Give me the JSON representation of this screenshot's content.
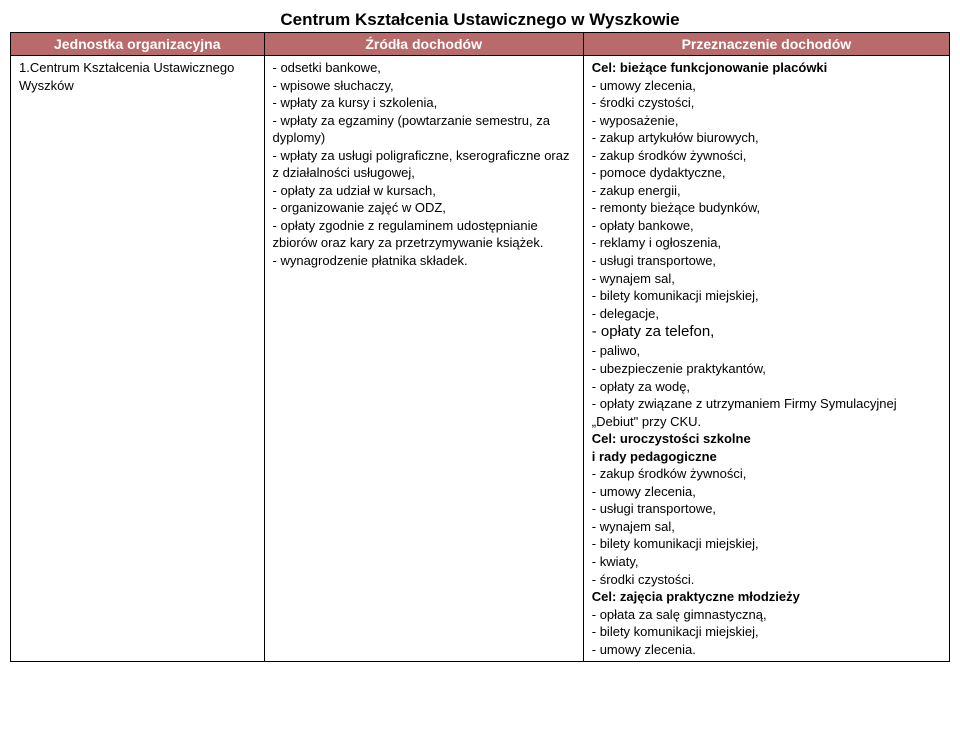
{
  "title": "Centrum Kształcenia Ustawicznego w Wyszkowie",
  "headers": {
    "col1": "Jednostka organizacyjna",
    "col2": "Źródła dochodów",
    "col3": "Przeznaczenie dochodów"
  },
  "row": {
    "unit": "1.Centrum Kształcenia Ustawicznego Wyszków",
    "sources": "- odsetki bankowe,\n- wpisowe słuchaczy,\n- wpłaty za kursy i szkolenia,\n- wpłaty za egzaminy (powtarzanie semestru, za dyplomy)\n- wpłaty za usługi poligraficzne, kserograficzne oraz z działalności usługowej,\n- opłaty za udział w kursach,\n- organizowanie zajęć w ODZ,\n- opłaty zgodnie z regulaminem udostępnianie zbiorów oraz kary za przetrzymywanie książek.\n- wynagrodzenie płatnika składek.",
    "purpose_goal1": "Cel: bieżące funkcjonowanie placówki",
    "purpose_block1": "- umowy zlecenia,\n- środki czystości,\n- wyposażenie,\n- zakup artykułów biurowych,\n- zakup środków żywności,\n- pomoce dydaktyczne,\n- zakup energii,\n- remonty bieżące budynków,\n- opłaty bankowe,\n- reklamy i ogłoszenia,\n- usługi transportowe,\n- wynajem sal,\n- bilety komunikacji miejskiej,\n- delegacje,",
    "purpose_telefon": "- opłaty za telefon,",
    "purpose_block1b": "- paliwo,\n- ubezpieczenie praktykantów,\n- opłaty za wodę,\n- opłaty związane z utrzymaniem Firmy Symulacyjnej „Debiut\" przy CKU.",
    "purpose_goal2a": "Cel: uroczystości szkolne",
    "purpose_goal2b": "i rady pedagogiczne",
    "purpose_block2": "- zakup środków żywności,\n- umowy zlecenia,\n- usługi transportowe,\n- wynajem sal,\n- bilety komunikacji miejskiej,\n- kwiaty,\n- środki czystości.",
    "purpose_goal3": "Cel: zajęcia praktyczne młodzieży",
    "purpose_block3": "- opłata za salę gimnastyczną,\n- bilety komunikacji miejskiej,\n- umowy zlecenia."
  },
  "style": {
    "header_bg": "#b96a6a",
    "header_fg": "#ffffff",
    "border_color": "#000000",
    "font_size_body": 13,
    "font_size_title": 17
  }
}
